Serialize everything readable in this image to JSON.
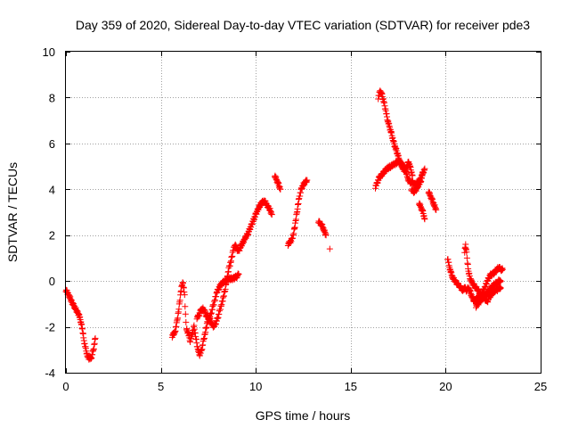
{
  "chart_data": {
    "type": "scatter",
    "title": "Day 359 of 2020, Sidereal Day-to-day VTEC variation (SDTVAR) for receiver pde3",
    "xlabel": "GPS time / hours",
    "ylabel": "SDTVAR / TECUs",
    "xlim": [
      0,
      25
    ],
    "ylim": [
      -4,
      10
    ],
    "xticks": [
      0,
      5,
      10,
      15,
      20,
      25
    ],
    "yticks": [
      -4,
      -2,
      0,
      2,
      4,
      6,
      8,
      10
    ],
    "grid": true,
    "marker": "+",
    "color": "#ff0000",
    "series": [
      {
        "name": "SDTVAR",
        "segments": [
          [
            [
              0.0,
              -0.4
            ],
            [
              0.15,
              -0.6
            ],
            [
              0.3,
              -0.9
            ],
            [
              0.5,
              -1.2
            ],
            [
              0.7,
              -1.5
            ],
            [
              0.85,
              -2.0
            ],
            [
              0.95,
              -2.6
            ],
            [
              1.05,
              -3.0
            ],
            [
              1.15,
              -3.3
            ],
            [
              1.25,
              -3.4
            ],
            [
              1.35,
              -3.3
            ],
            [
              1.45,
              -3.0
            ],
            [
              1.55,
              -2.5
            ]
          ],
          [
            [
              5.6,
              -2.4
            ],
            [
              5.75,
              -2.2
            ],
            [
              5.85,
              -1.8
            ],
            [
              5.95,
              -1.2
            ],
            [
              6.05,
              -0.5
            ],
            [
              6.15,
              0.0
            ],
            [
              6.25,
              -0.6
            ],
            [
              6.3,
              -1.5
            ],
            [
              6.35,
              -2.1
            ],
            [
              6.45,
              -2.3
            ],
            [
              6.55,
              -2.6
            ],
            [
              6.65,
              -2.3
            ],
            [
              6.75,
              -2.0
            ],
            [
              6.85,
              -2.5
            ],
            [
              6.95,
              -3.0
            ],
            [
              7.05,
              -3.2
            ],
            [
              7.15,
              -3.0
            ],
            [
              7.25,
              -2.6
            ],
            [
              7.35,
              -2.2
            ],
            [
              7.45,
              -1.8
            ],
            [
              7.55,
              -1.6
            ],
            [
              7.65,
              -1.4
            ],
            [
              7.75,
              -1.1
            ],
            [
              7.85,
              -0.8
            ],
            [
              7.95,
              -0.5
            ],
            [
              8.05,
              -0.3
            ],
            [
              8.2,
              -0.1
            ],
            [
              8.4,
              0.0
            ],
            [
              8.6,
              0.1
            ],
            [
              8.8,
              0.1
            ],
            [
              9.0,
              0.2
            ],
            [
              9.1,
              0.3
            ]
          ],
          [
            [
              6.9,
              -1.6
            ],
            [
              7.0,
              -1.5
            ],
            [
              7.1,
              -1.3
            ],
            [
              7.2,
              -1.2
            ],
            [
              7.3,
              -1.3
            ],
            [
              7.4,
              -1.5
            ],
            [
              7.5,
              -1.6
            ],
            [
              7.6,
              -1.7
            ],
            [
              7.7,
              -1.9
            ],
            [
              7.8,
              -2.0
            ],
            [
              7.9,
              -1.8
            ],
            [
              8.0,
              -1.6
            ],
            [
              8.1,
              -1.3
            ],
            [
              8.2,
              -1.0
            ],
            [
              8.3,
              -0.7
            ],
            [
              8.4,
              -0.3
            ],
            [
              8.5,
              0.2
            ],
            [
              8.6,
              0.6
            ],
            [
              8.7,
              0.9
            ],
            [
              8.8,
              1.3
            ],
            [
              8.9,
              1.6
            ],
            [
              9.0,
              1.4
            ],
            [
              9.1,
              1.3
            ],
            [
              9.2,
              1.5
            ],
            [
              9.4,
              1.8
            ],
            [
              9.6,
              2.1
            ],
            [
              9.8,
              2.5
            ],
            [
              10.0,
              2.9
            ],
            [
              10.15,
              3.2
            ],
            [
              10.3,
              3.4
            ],
            [
              10.45,
              3.5
            ],
            [
              10.6,
              3.3
            ],
            [
              10.75,
              3.1
            ],
            [
              10.85,
              2.9
            ]
          ],
          [
            [
              11.0,
              4.6
            ],
            [
              11.1,
              4.4
            ],
            [
              11.2,
              4.2
            ],
            [
              11.3,
              4.0
            ]
          ],
          [
            [
              11.7,
              1.6
            ],
            [
              11.8,
              1.7
            ],
            [
              11.9,
              1.8
            ],
            [
              12.0,
              2.1
            ],
            [
              12.1,
              2.6
            ],
            [
              12.2,
              3.2
            ],
            [
              12.3,
              3.7
            ],
            [
              12.4,
              4.0
            ],
            [
              12.5,
              4.2
            ],
            [
              12.6,
              4.3
            ],
            [
              12.7,
              4.4
            ]
          ],
          [
            [
              13.3,
              2.6
            ],
            [
              13.4,
              2.5
            ],
            [
              13.5,
              2.4
            ],
            [
              13.6,
              2.2
            ],
            [
              13.7,
              2.0
            ]
          ],
          [
            [
              13.9,
              1.4
            ]
          ],
          [
            [
              16.3,
              4.1
            ],
            [
              16.4,
              4.3
            ],
            [
              16.5,
              4.5
            ],
            [
              16.7,
              4.7
            ],
            [
              16.9,
              4.9
            ],
            [
              17.1,
              5.0
            ],
            [
              17.3,
              5.1
            ],
            [
              17.5,
              5.2
            ],
            [
              17.7,
              5.1
            ],
            [
              17.8,
              5.0
            ],
            [
              17.9,
              4.8
            ],
            [
              18.0,
              4.5
            ],
            [
              18.1,
              4.3
            ],
            [
              18.25,
              4.3
            ],
            [
              18.4,
              4.2
            ],
            [
              18.55,
              4.3
            ],
            [
              18.7,
              4.5
            ],
            [
              18.8,
              4.7
            ],
            [
              18.9,
              4.9
            ]
          ],
          [
            [
              16.45,
              8.0
            ],
            [
              16.55,
              8.3
            ],
            [
              16.65,
              8.1
            ],
            [
              16.75,
              7.8
            ],
            [
              16.85,
              7.4
            ],
            [
              16.95,
              7.0
            ],
            [
              17.05,
              6.7
            ],
            [
              17.15,
              6.4
            ],
            [
              17.25,
              6.1
            ],
            [
              17.35,
              5.8
            ],
            [
              17.45,
              5.6
            ],
            [
              17.55,
              5.3
            ],
            [
              17.65,
              5.1
            ],
            [
              17.75,
              4.9
            ],
            [
              17.85,
              4.8
            ],
            [
              17.95,
              5.0
            ],
            [
              18.05,
              5.2
            ],
            [
              18.15,
              4.9
            ],
            [
              18.25,
              4.6
            ]
          ],
          [
            [
              18.2,
              4.0
            ],
            [
              18.3,
              3.9
            ],
            [
              18.4,
              3.9
            ],
            [
              18.5,
              4.1
            ],
            [
              18.6,
              4.2
            ],
            [
              18.7,
              4.4
            ],
            [
              18.8,
              4.7
            ]
          ],
          [
            [
              18.6,
              3.4
            ],
            [
              18.7,
              3.2
            ],
            [
              18.8,
              3.0
            ],
            [
              18.9,
              2.7
            ]
          ],
          [
            [
              19.1,
              3.9
            ],
            [
              19.2,
              3.7
            ],
            [
              19.3,
              3.5
            ],
            [
              19.4,
              3.3
            ],
            [
              19.5,
              3.1
            ]
          ],
          [
            [
              20.1,
              1.0
            ],
            [
              20.2,
              0.6
            ],
            [
              20.3,
              0.3
            ],
            [
              20.4,
              0.1
            ],
            [
              20.5,
              0.0
            ],
            [
              20.6,
              -0.1
            ],
            [
              20.7,
              -0.2
            ],
            [
              20.8,
              -0.3
            ],
            [
              20.9,
              -0.4
            ],
            [
              21.0,
              -0.3
            ],
            [
              21.1,
              -0.4
            ],
            [
              21.2,
              -0.3
            ],
            [
              21.3,
              -0.5
            ],
            [
              21.4,
              -0.7
            ],
            [
              21.5,
              -0.9
            ],
            [
              21.6,
              -0.8
            ],
            [
              21.7,
              -0.7
            ],
            [
              21.8,
              -0.6
            ],
            [
              21.9,
              -0.6
            ],
            [
              22.0,
              -0.5
            ],
            [
              22.1,
              -0.6
            ],
            [
              22.2,
              -0.5
            ],
            [
              22.3,
              -0.4
            ],
            [
              22.4,
              -0.3
            ],
            [
              22.5,
              -0.2
            ],
            [
              22.6,
              -0.1
            ],
            [
              22.7,
              -0.1
            ],
            [
              22.8,
              0.0
            ],
            [
              22.9,
              0.0
            ]
          ],
          [
            [
              21.0,
              1.3
            ],
            [
              21.05,
              1.6
            ],
            [
              21.1,
              1.2
            ],
            [
              21.15,
              0.8
            ],
            [
              21.2,
              0.4
            ],
            [
              21.3,
              0.1
            ],
            [
              21.4,
              -0.1
            ],
            [
              21.5,
              -0.2
            ],
            [
              21.6,
              -0.3
            ],
            [
              21.7,
              -0.4
            ],
            [
              21.8,
              -0.5
            ],
            [
              21.9,
              -0.6
            ],
            [
              22.0,
              -0.4
            ],
            [
              22.1,
              -0.2
            ],
            [
              22.2,
              0.0
            ],
            [
              22.3,
              0.2
            ],
            [
              22.4,
              0.3
            ],
            [
              22.5,
              0.3
            ],
            [
              22.6,
              0.4
            ],
            [
              22.7,
              0.5
            ],
            [
              22.8,
              0.6
            ],
            [
              22.9,
              0.5
            ],
            [
              23.0,
              0.5
            ]
          ],
          [
            [
              21.6,
              -1.1
            ],
            [
              21.7,
              -1.0
            ],
            [
              21.8,
              -0.9
            ],
            [
              21.9,
              -0.8
            ],
            [
              22.0,
              -0.7
            ],
            [
              22.1,
              -0.8
            ],
            [
              22.2,
              -0.9
            ],
            [
              22.3,
              -0.7
            ],
            [
              22.4,
              -0.6
            ],
            [
              22.5,
              -0.5
            ],
            [
              22.6,
              -0.4
            ],
            [
              22.7,
              -0.4
            ],
            [
              22.8,
              -0.3
            ],
            [
              22.9,
              -0.3
            ]
          ]
        ]
      }
    ]
  }
}
